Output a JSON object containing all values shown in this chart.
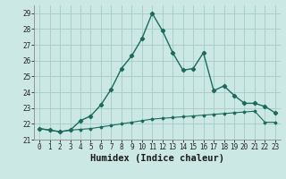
{
  "xlabel": "Humidex (Indice chaleur)",
  "bg_color": "#cce8e4",
  "grid_color": "#aacfca",
  "line_color": "#1a6b5e",
  "xlim": [
    -0.5,
    23.5
  ],
  "ylim": [
    21.0,
    29.5
  ],
  "yticks": [
    21,
    22,
    23,
    24,
    25,
    26,
    27,
    28,
    29
  ],
  "xticks": [
    0,
    1,
    2,
    3,
    4,
    5,
    6,
    7,
    8,
    9,
    10,
    11,
    12,
    13,
    14,
    15,
    16,
    17,
    18,
    19,
    20,
    21,
    22,
    23
  ],
  "upper_x": [
    0,
    1,
    2,
    3,
    4,
    5,
    6,
    7,
    8,
    9,
    10,
    11,
    12,
    13,
    14,
    15,
    16,
    17,
    18,
    19,
    20,
    21,
    22,
    23
  ],
  "upper_y": [
    21.7,
    21.6,
    21.5,
    21.6,
    22.2,
    22.5,
    23.2,
    24.2,
    25.5,
    26.3,
    27.4,
    29.0,
    27.9,
    26.5,
    25.4,
    25.5,
    26.5,
    24.1,
    24.4,
    23.8,
    23.3,
    23.3,
    23.1,
    22.7
  ],
  "lower_x": [
    0,
    1,
    2,
    3,
    4,
    5,
    6,
    7,
    8,
    9,
    10,
    11,
    12,
    13,
    14,
    15,
    16,
    17,
    18,
    19,
    20,
    21,
    22,
    23
  ],
  "lower_y": [
    21.7,
    21.6,
    21.5,
    21.6,
    21.65,
    21.7,
    21.8,
    21.9,
    22.0,
    22.1,
    22.2,
    22.3,
    22.35,
    22.4,
    22.45,
    22.5,
    22.55,
    22.6,
    22.65,
    22.7,
    22.75,
    22.8,
    22.1,
    22.1
  ],
  "tick_fontsize": 5.5,
  "label_fontsize": 7.5
}
